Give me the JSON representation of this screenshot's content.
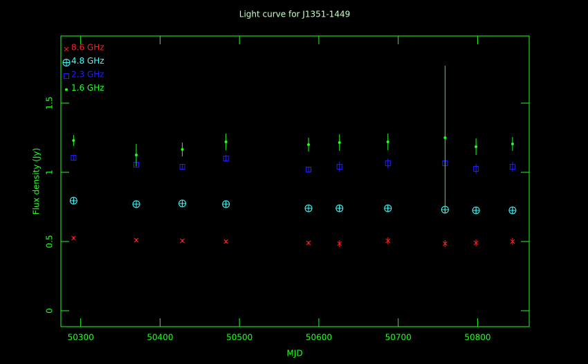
{
  "chart_data": {
    "type": "scatter",
    "title": "Light curve for J1351-1449",
    "xlabel": "MJD",
    "ylabel": "Flux density (Jy)",
    "x": [
      50291,
      50370,
      50428,
      50483,
      50587,
      50626,
      50687,
      50759,
      50798,
      50844
    ],
    "series": [
      {
        "name": "8.6 GHz",
        "color": "#ff2020",
        "marker": "x",
        "values": [
          0.525,
          0.51,
          0.505,
          0.5,
          0.49,
          0.485,
          0.505,
          0.485,
          0.49,
          0.5
        ],
        "errors": [
          0.01,
          0.01,
          0.01,
          0.01,
          0.01,
          0.025,
          0.025,
          0.025,
          0.025,
          0.025
        ]
      },
      {
        "name": "4.8 GHz",
        "color": "#40ffff",
        "marker": "circle-plus",
        "values": [
          0.795,
          0.77,
          0.775,
          0.77,
          0.74,
          0.74,
          0.74,
          0.73,
          0.725,
          0.725
        ],
        "errors": [
          0.015,
          0.015,
          0.015,
          0.015,
          0.015,
          0.02,
          0.02,
          0.02,
          0.02,
          0.02
        ]
      },
      {
        "name": "2.3 GHz",
        "color": "#2020ff",
        "marker": "square",
        "values": [
          1.105,
          1.055,
          1.04,
          1.1,
          1.02,
          1.04,
          1.065,
          1.065,
          1.025,
          1.04
        ],
        "errors": [
          0.02,
          0.02,
          0.02,
          0.025,
          0.015,
          0.035,
          0.035,
          0.03,
          0.035,
          0.035
        ]
      },
      {
        "name": "1.6 GHz",
        "color": "#20ff20",
        "marker": "dot",
        "values": [
          1.23,
          1.125,
          1.165,
          1.22,
          1.2,
          1.215,
          1.22,
          1.25,
          1.185,
          1.205
        ],
        "errors": [
          0.04,
          0.08,
          0.05,
          0.06,
          0.05,
          0.06,
          0.06,
          0.52,
          0.06,
          0.05
        ]
      }
    ],
    "xlim": [
      50275,
      50865
    ],
    "ylim": [
      -0.115,
      1.985
    ],
    "xticks": [
      50300,
      50400,
      50500,
      50600,
      50700,
      50800
    ],
    "yticks": [
      0,
      0.5,
      1,
      1.5
    ],
    "legend": "top-left",
    "axis_color": "#20ff20",
    "background": "#000000"
  }
}
